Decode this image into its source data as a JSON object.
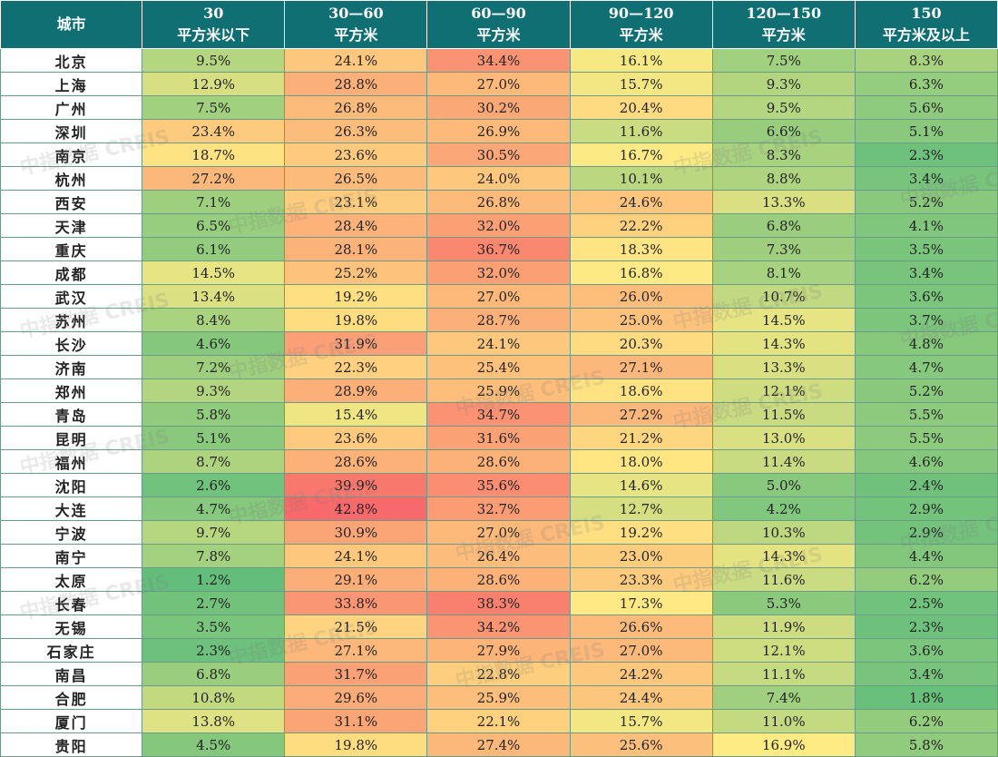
{
  "headers": [
    {
      "l1": "城市",
      "l2": ""
    },
    {
      "l1": "30",
      "l2": "平方米以下"
    },
    {
      "l1": "30—60",
      "l2": "平方米"
    },
    {
      "l1": "60—90",
      "l2": "平方米"
    },
    {
      "l1": "90—120",
      "l2": "平方米"
    },
    {
      "l1": "120—150",
      "l2": "平方米"
    },
    {
      "l1": "150",
      "l2": "平方米及以上"
    }
  ],
  "rows": [
    {
      "city": "北京",
      "v": [
        9.5,
        24.1,
        34.4,
        16.1,
        7.5,
        8.3
      ]
    },
    {
      "city": "上海",
      "v": [
        12.9,
        28.8,
        27.0,
        15.7,
        9.3,
        6.3
      ]
    },
    {
      "city": "广州",
      "v": [
        7.5,
        26.8,
        30.2,
        20.4,
        9.5,
        5.6
      ]
    },
    {
      "city": "深圳",
      "v": [
        23.4,
        26.3,
        26.9,
        11.6,
        6.6,
        5.1
      ]
    },
    {
      "city": "南京",
      "v": [
        18.7,
        23.6,
        30.5,
        16.7,
        8.3,
        2.3
      ]
    },
    {
      "city": "杭州",
      "v": [
        27.2,
        26.5,
        24.0,
        10.1,
        8.8,
        3.4
      ]
    },
    {
      "city": "西安",
      "v": [
        7.1,
        23.1,
        26.8,
        24.6,
        13.3,
        5.2
      ]
    },
    {
      "city": "天津",
      "v": [
        6.5,
        28.4,
        32.0,
        22.2,
        6.8,
        4.1
      ]
    },
    {
      "city": "重庆",
      "v": [
        6.1,
        28.1,
        36.7,
        18.3,
        7.3,
        3.5
      ]
    },
    {
      "city": "成都",
      "v": [
        14.5,
        25.2,
        32.0,
        16.8,
        8.1,
        3.4
      ]
    },
    {
      "city": "武汉",
      "v": [
        13.4,
        19.2,
        27.0,
        26.0,
        10.7,
        3.6
      ]
    },
    {
      "city": "苏州",
      "v": [
        8.4,
        19.8,
        28.7,
        25.0,
        14.5,
        3.7
      ]
    },
    {
      "city": "长沙",
      "v": [
        4.6,
        31.9,
        24.1,
        20.3,
        14.3,
        4.8
      ]
    },
    {
      "city": "济南",
      "v": [
        7.2,
        22.3,
        25.4,
        27.1,
        13.3,
        4.7
      ]
    },
    {
      "city": "郑州",
      "v": [
        9.3,
        28.9,
        25.9,
        18.6,
        12.1,
        5.2
      ]
    },
    {
      "city": "青岛",
      "v": [
        5.8,
        15.4,
        34.7,
        27.2,
        11.5,
        5.5
      ]
    },
    {
      "city": "昆明",
      "v": [
        5.1,
        23.6,
        31.6,
        21.2,
        13.0,
        5.5
      ]
    },
    {
      "city": "福州",
      "v": [
        8.7,
        28.6,
        28.6,
        18.0,
        11.4,
        4.6
      ]
    },
    {
      "city": "沈阳",
      "v": [
        2.6,
        39.9,
        35.6,
        14.6,
        5.0,
        2.4
      ]
    },
    {
      "city": "大连",
      "v": [
        4.7,
        42.8,
        32.7,
        12.7,
        4.2,
        2.9
      ]
    },
    {
      "city": "宁波",
      "v": [
        9.7,
        30.9,
        27.0,
        19.2,
        10.3,
        2.9
      ]
    },
    {
      "city": "南宁",
      "v": [
        7.8,
        24.1,
        26.4,
        23.0,
        14.3,
        4.4
      ]
    },
    {
      "city": "太原",
      "v": [
        1.2,
        29.1,
        28.6,
        23.3,
        11.6,
        6.2
      ]
    },
    {
      "city": "长春",
      "v": [
        2.7,
        33.8,
        38.3,
        17.3,
        5.3,
        2.5
      ]
    },
    {
      "city": "无锡",
      "v": [
        3.5,
        21.5,
        34.2,
        26.6,
        11.9,
        2.3
      ]
    },
    {
      "city": "石家庄",
      "v": [
        2.3,
        27.1,
        27.9,
        27.0,
        12.1,
        3.6
      ]
    },
    {
      "city": "南昌",
      "v": [
        6.8,
        31.7,
        22.8,
        24.2,
        11.1,
        3.4
      ]
    },
    {
      "city": "合肥",
      "v": [
        10.8,
        29.6,
        25.9,
        24.4,
        7.4,
        1.8
      ]
    },
    {
      "city": "厦门",
      "v": [
        13.8,
        31.1,
        22.1,
        15.7,
        11.0,
        6.2
      ]
    },
    {
      "city": "贵阳",
      "v": [
        4.5,
        19.8,
        27.4,
        25.6,
        16.9,
        5.8
      ]
    }
  ],
  "watermark": "中指数据 CREIS"
}
